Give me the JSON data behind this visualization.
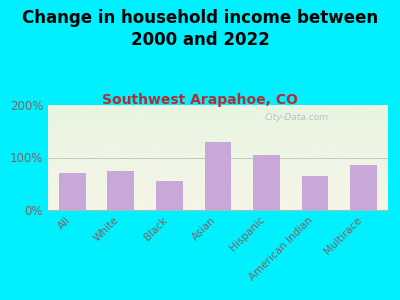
{
  "title": "Change in household income between\n2000 and 2022",
  "subtitle": "Southwest Arapahoe, CO",
  "categories": [
    "All",
    "White",
    "Black",
    "Asian",
    "Hispanic",
    "American Indian",
    "Multirace"
  ],
  "values": [
    70,
    75,
    55,
    130,
    105,
    65,
    85
  ],
  "bar_color": "#c8a8d8",
  "background_outer": "#00f0ff",
  "background_inner_top": "#e8f5e0",
  "background_inner_bottom": "#f5f5e8",
  "ylim": [
    0,
    200
  ],
  "yticks": [
    0,
    100,
    200
  ],
  "ytick_labels": [
    "0%",
    "100%",
    "200%"
  ],
  "title_fontsize": 12,
  "subtitle_fontsize": 10,
  "subtitle_color": "#b03030",
  "title_color": "#000000",
  "tick_color": "#806060",
  "watermark": "City-Data.com",
  "watermark_color": "#a0b0c0"
}
